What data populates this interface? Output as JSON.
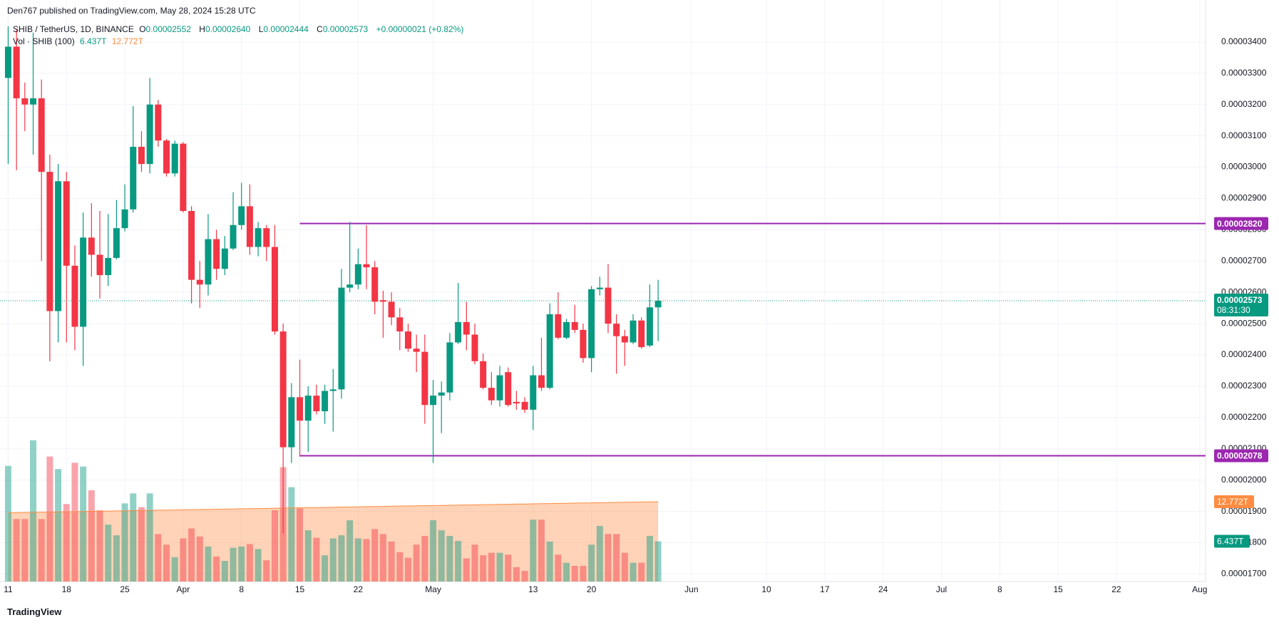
{
  "chart_data": {
    "type": "candlestick",
    "published": "Den767 published on TradingView.com, May 28, 2024 15:28 UTC",
    "footer": "TradingView",
    "legend": {
      "symbol": "SHIB / TetherUS, 1D, BINANCE",
      "items": [
        {
          "key": "O",
          "value": "0.00002552"
        },
        {
          "key": "H",
          "value": "0.00002640"
        },
        {
          "key": "L",
          "value": "0.00002444"
        },
        {
          "key": "C",
          "value": "0.00002573"
        }
      ],
      "change": "+0.00000021 (+0.82%)"
    },
    "up_color": "#089981",
    "down_color": "#f23645",
    "open": [
      3.285e-05,
      3.385e-05,
      3.22e-05,
      3.2e-05,
      3.22e-05,
      2.985e-05,
      2.54e-05,
      2.955e-05,
      2.685e-05,
      2.49e-05,
      2.775e-05,
      2.72e-05,
      2.655e-05,
      2.71e-05,
      2.805e-05,
      2.865e-05,
      3.065e-05,
      3.01e-05,
      3.2e-05,
      3.085e-05,
      2.98e-05,
      3.075e-05,
      2.86e-05,
      2.64e-05,
      2.625e-05,
      2.77e-05,
      2.675e-05,
      2.74e-05,
      2.815e-05,
      2.875e-05,
      2.745e-05,
      2.805e-05,
      2.745e-05,
      2.475e-05,
      2.105e-05,
      2.265e-05,
      2.19e-05,
      2.27e-05,
      2.22e-05,
      2.285e-05,
      2.29e-05,
      2.615e-05,
      2.625e-05,
      2.69e-05,
      2.68e-05,
      2.575e-05,
      2.57e-05,
      2.52e-05,
      2.475e-05,
      2.42e-05,
      2.41e-05,
      2.24e-05,
      2.27e-05,
      2.28e-05,
      2.44e-05,
      2.505e-05,
      2.465e-05,
      2.38e-05,
      2.295e-05,
      2.255e-05,
      2.345e-05,
      2.25e-05,
      2.25e-05,
      2.225e-05,
      2.335e-05,
      2.295e-05,
      2.53e-05,
      2.455e-05,
      2.505e-05,
      2.48e-05,
      2.39e-05,
      2.61e-05,
      2.615e-05,
      2.5e-05,
      2.46e-05,
      2.44e-05,
      2.51e-05,
      2.43e-05,
      2.552e-05
    ],
    "high": [
      3.45e-05,
      3.44e-05,
      3.27e-05,
      3.43e-05,
      3.28e-05,
      3.04e-05,
      3.01e-05,
      2.985e-05,
      2.75e-05,
      2.855e-05,
      2.885e-05,
      2.86e-05,
      2.85e-05,
      2.895e-05,
      2.945e-05,
      3.195e-05,
      3.115e-05,
      3.285e-05,
      3.215e-05,
      3.09e-05,
      3.085e-05,
      3.08e-05,
      2.875e-05,
      2.7e-05,
      2.85e-05,
      2.8e-05,
      2.78e-05,
      2.92e-05,
      2.95e-05,
      2.945e-05,
      2.825e-05,
      2.815e-05,
      2.815e-05,
      2.5e-05,
      2.31e-05,
      2.385e-05,
      2.3e-05,
      2.305e-05,
      2.305e-05,
      2.355e-05,
      2.675e-05,
      2.825e-05,
      2.74e-05,
      2.815e-05,
      2.7e-05,
      2.605e-05,
      2.6e-05,
      2.55e-05,
      2.5e-05,
      2.465e-05,
      2.465e-05,
      2.32e-05,
      2.315e-05,
      2.47e-05,
      2.63e-05,
      2.57e-05,
      2.5e-05,
      2.405e-05,
      2.345e-05,
      2.365e-05,
      2.36e-05,
      2.285e-05,
      2.265e-05,
      2.365e-05,
      2.455e-05,
      2.565e-05,
      2.6e-05,
      2.515e-05,
      2.56e-05,
      2.5e-05,
      2.62e-05,
      2.65e-05,
      2.69e-05,
      2.53e-05,
      2.48e-05,
      2.53e-05,
      2.52e-05,
      2.625e-05,
      2.64e-05
    ],
    "low": [
      3.01e-05,
      2.99e-05,
      3.115e-05,
      3.04e-05,
      2.7e-05,
      2.38e-05,
      2.44e-05,
      2.44e-05,
      2.415e-05,
      2.365e-05,
      2.65e-05,
      2.58e-05,
      2.62e-05,
      2.705e-05,
      2.795e-05,
      2.855e-05,
      2.985e-05,
      2.98e-05,
      3.065e-05,
      2.97e-05,
      2.97e-05,
      2.855e-05,
      2.565e-05,
      2.55e-05,
      2.59e-05,
      2.64e-05,
      2.655e-05,
      2.735e-05,
      2.8e-05,
      2.72e-05,
      2.715e-05,
      2.7e-05,
      2.465e-05,
      1.83e-05,
      2.055e-05,
      2.075e-05,
      2.09e-05,
      2.21e-05,
      2.18e-05,
      2.155e-05,
      2.26e-05,
      2.6e-05,
      2.61e-05,
      2.61e-05,
      2.53e-05,
      2.455e-05,
      2.495e-05,
      2.415e-05,
      2.41e-05,
      2.345e-05,
      2.18e-05,
      2.055e-05,
      2.15e-05,
      2.255e-05,
      2.435e-05,
      2.415e-05,
      2.37e-05,
      2.29e-05,
      2.24e-05,
      2.235e-05,
      2.235e-05,
      2.225e-05,
      2.215e-05,
      2.16e-05,
      2.285e-05,
      2.29e-05,
      2.45e-05,
      2.45e-05,
      2.47e-05,
      2.375e-05,
      2.345e-05,
      2.59e-05,
      2.47e-05,
      2.34e-05,
      2.365e-05,
      2.435e-05,
      2.42e-05,
      2.425e-05,
      2.444e-05
    ],
    "close": [
      3.385e-05,
      3.22e-05,
      3.2e-05,
      3.22e-05,
      2.985e-05,
      2.54e-05,
      2.955e-05,
      2.685e-05,
      2.49e-05,
      2.775e-05,
      2.72e-05,
      2.655e-05,
      2.71e-05,
      2.805e-05,
      2.865e-05,
      3.065e-05,
      3.01e-05,
      3.2e-05,
      3.085e-05,
      2.98e-05,
      3.075e-05,
      2.86e-05,
      2.64e-05,
      2.625e-05,
      2.77e-05,
      2.675e-05,
      2.74e-05,
      2.815e-05,
      2.875e-05,
      2.745e-05,
      2.805e-05,
      2.745e-05,
      2.475e-05,
      2.105e-05,
      2.265e-05,
      2.19e-05,
      2.27e-05,
      2.22e-05,
      2.285e-05,
      2.29e-05,
      2.615e-05,
      2.625e-05,
      2.69e-05,
      2.68e-05,
      2.57e-05,
      2.57e-05,
      2.52e-05,
      2.475e-05,
      2.42e-05,
      2.41e-05,
      2.24e-05,
      2.27e-05,
      2.28e-05,
      2.44e-05,
      2.505e-05,
      2.465e-05,
      2.38e-05,
      2.295e-05,
      2.255e-05,
      2.335e-05,
      2.24e-05,
      2.245e-05,
      2.225e-05,
      2.335e-05,
      2.295e-05,
      2.53e-05,
      2.455e-05,
      2.505e-05,
      2.48e-05,
      2.39e-05,
      2.61e-05,
      2.615e-05,
      2.5e-05,
      2.46e-05,
      2.44e-05,
      2.51e-05,
      2.425e-05,
      2.552e-05,
      2.573e-05
    ],
    "volume": {
      "title": "Vol · SHIB (100)",
      "last_label": "6.437T",
      "values": [
        18.5,
        10,
        10,
        22.6,
        10,
        20,
        18,
        12.4,
        19,
        18.4,
        14.6,
        11.4,
        9.1,
        7.4,
        12.5,
        14.1,
        11.9,
        14.1,
        7.6,
        5.9,
        3.9,
        6.9,
        8.5,
        7.2,
        5.6,
        4,
        3.3,
        5.4,
        5.6,
        6,
        5.2,
        3.4,
        11.4,
        18.3,
        15.1,
        11.7,
        8.2,
        7,
        4.2,
        6.9,
        7.4,
        9.8,
        6.9,
        6.8,
        8.4,
        7.6,
        6.4,
        4.7,
        3.8,
        5.9,
        7.3,
        9.8,
        8.2,
        7.3,
        6.5,
        3.7,
        5.9,
        4.2,
        4.6,
        4.6,
        4.3,
        2.3,
        1.7,
        9.9,
        9.9,
        6.4,
        4.3,
        3,
        2.5,
        2.5,
        5.9,
        8.9,
        7.6,
        7.6,
        4.6,
        3,
        3,
        7.3,
        6.437
      ],
      "ma": {
        "color": "#ff8c42",
        "last_label": "12.772T",
        "values": [
          11.0,
          11.02,
          11.05,
          11.07,
          11.09,
          11.11,
          11.14,
          11.16,
          11.18,
          11.2,
          11.23,
          11.25,
          11.27,
          11.3,
          11.32,
          11.34,
          11.36,
          11.39,
          11.41,
          11.43,
          11.45,
          11.48,
          11.5,
          11.52,
          11.55,
          11.57,
          11.59,
          11.61,
          11.64,
          11.66,
          11.68,
          11.7,
          11.73,
          11.75,
          11.77,
          11.8,
          11.82,
          11.84,
          11.86,
          11.89,
          11.91,
          11.93,
          11.95,
          11.98,
          12.0,
          12.02,
          12.05,
          12.07,
          12.09,
          12.11,
          12.14,
          12.16,
          12.18,
          12.2,
          12.23,
          12.25,
          12.27,
          12.3,
          12.32,
          12.34,
          12.36,
          12.39,
          12.41,
          12.43,
          12.45,
          12.48,
          12.5,
          12.52,
          12.55,
          12.57,
          12.59,
          12.61,
          12.64,
          12.66,
          12.68,
          12.7,
          12.73,
          12.75,
          12.772
        ]
      }
    },
    "last_price": {
      "value": 2.573e-05,
      "label": "0.00002573",
      "countdown": "08:31:30"
    },
    "hlines": [
      {
        "value": 2.82e-05,
        "label": "0.00002820",
        "x_start": 35,
        "color": "#9c27b0"
      },
      {
        "value": 2.078e-05,
        "label": "0.00002078",
        "x_start": 35,
        "color": "#9c27b0"
      }
    ],
    "ylim": [
      1.676e-05,
      3.468e-05
    ],
    "yticks": [
      {
        "value": 3.4e-05,
        "label": "0.00003400"
      },
      {
        "value": 3.3e-05,
        "label": "0.00003300"
      },
      {
        "value": 3.2e-05,
        "label": "0.00003200"
      },
      {
        "value": 3.1e-05,
        "label": "0.00003100"
      },
      {
        "value": 3e-05,
        "label": "0.00003000"
      },
      {
        "value": 2.9e-05,
        "label": "0.00002900"
      },
      {
        "value": 2.8e-05,
        "label": "0.00002800"
      },
      {
        "value": 2.7e-05,
        "label": "0.00002700"
      },
      {
        "value": 2.6e-05,
        "label": "0.00002600"
      },
      {
        "value": 2.5e-05,
        "label": "0.00002500"
      },
      {
        "value": 2.4e-05,
        "label": "0.00002400"
      },
      {
        "value": 2.3e-05,
        "label": "0.00002300"
      },
      {
        "value": 2.2e-05,
        "label": "0.00002200"
      },
      {
        "value": 2.1e-05,
        "label": "0.00002100"
      },
      {
        "value": 2e-05,
        "label": "0.00002000"
      },
      {
        "value": 1.9e-05,
        "label": "0.00001900"
      },
      {
        "value": 1.8e-05,
        "label": "0.00001800"
      },
      {
        "value": 1.7e-05,
        "label": "0.00001700"
      }
    ],
    "xlim": [
      -0.98,
      143.7
    ],
    "xticks": [
      {
        "value": 0,
        "label": "11"
      },
      {
        "value": 7,
        "label": "18"
      },
      {
        "value": 14,
        "label": "25"
      },
      {
        "value": 21,
        "label": "Apr"
      },
      {
        "value": 28,
        "label": "8"
      },
      {
        "value": 35,
        "label": "15"
      },
      {
        "value": 42,
        "label": "22"
      },
      {
        "value": 51,
        "label": "May"
      },
      {
        "value": 63,
        "label": "13"
      },
      {
        "value": 70,
        "label": "20"
      },
      {
        "value": 82,
        "label": "Jun"
      },
      {
        "value": 91,
        "label": "10"
      },
      {
        "value": 98,
        "label": "17"
      },
      {
        "value": 105,
        "label": "24"
      },
      {
        "value": 112,
        "label": "Jul"
      },
      {
        "value": 119,
        "label": "8"
      },
      {
        "value": 126,
        "label": "15"
      },
      {
        "value": 133,
        "label": "22"
      },
      {
        "value": 143,
        "label": "Aug"
      }
    ],
    "grid": true
  }
}
